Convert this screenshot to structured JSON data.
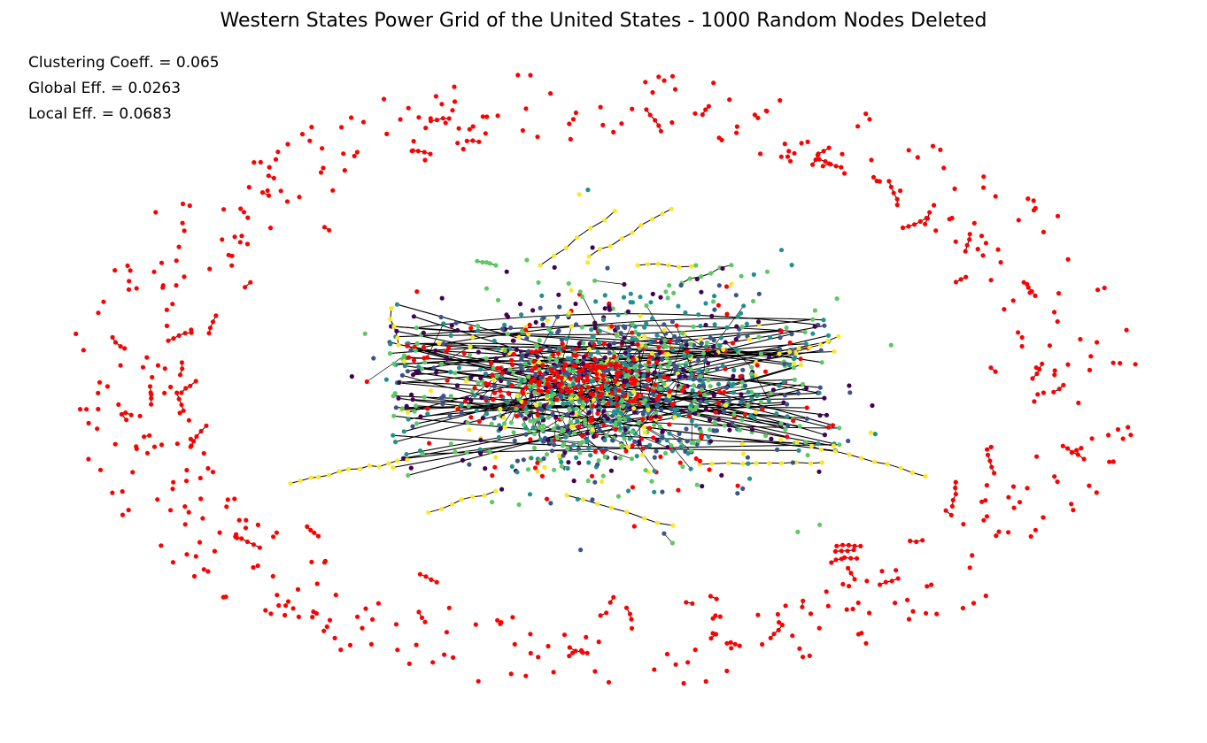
{
  "figure": {
    "title": "Western States Power Grid of the United States - 1000 Random Nodes Deleted"
  },
  "metrics": {
    "clustering_label": "Clustering Coeff. = 0.065",
    "global_label": "Global Eff. = 0.0263",
    "local_label": "Local Eff. = 0.0683",
    "clustering_coefficient": 0.065,
    "global_efficiency": 0.0263,
    "local_efficiency": 0.0683
  },
  "graph": {
    "layout": "force-directed",
    "isolated_node_color": "#ff0000",
    "edge_color": "#000000",
    "node_colormap": [
      "#440154",
      "#3b528b",
      "#21918c",
      "#5ec962",
      "#fde725"
    ],
    "deleted_node_count": 1000
  }
}
